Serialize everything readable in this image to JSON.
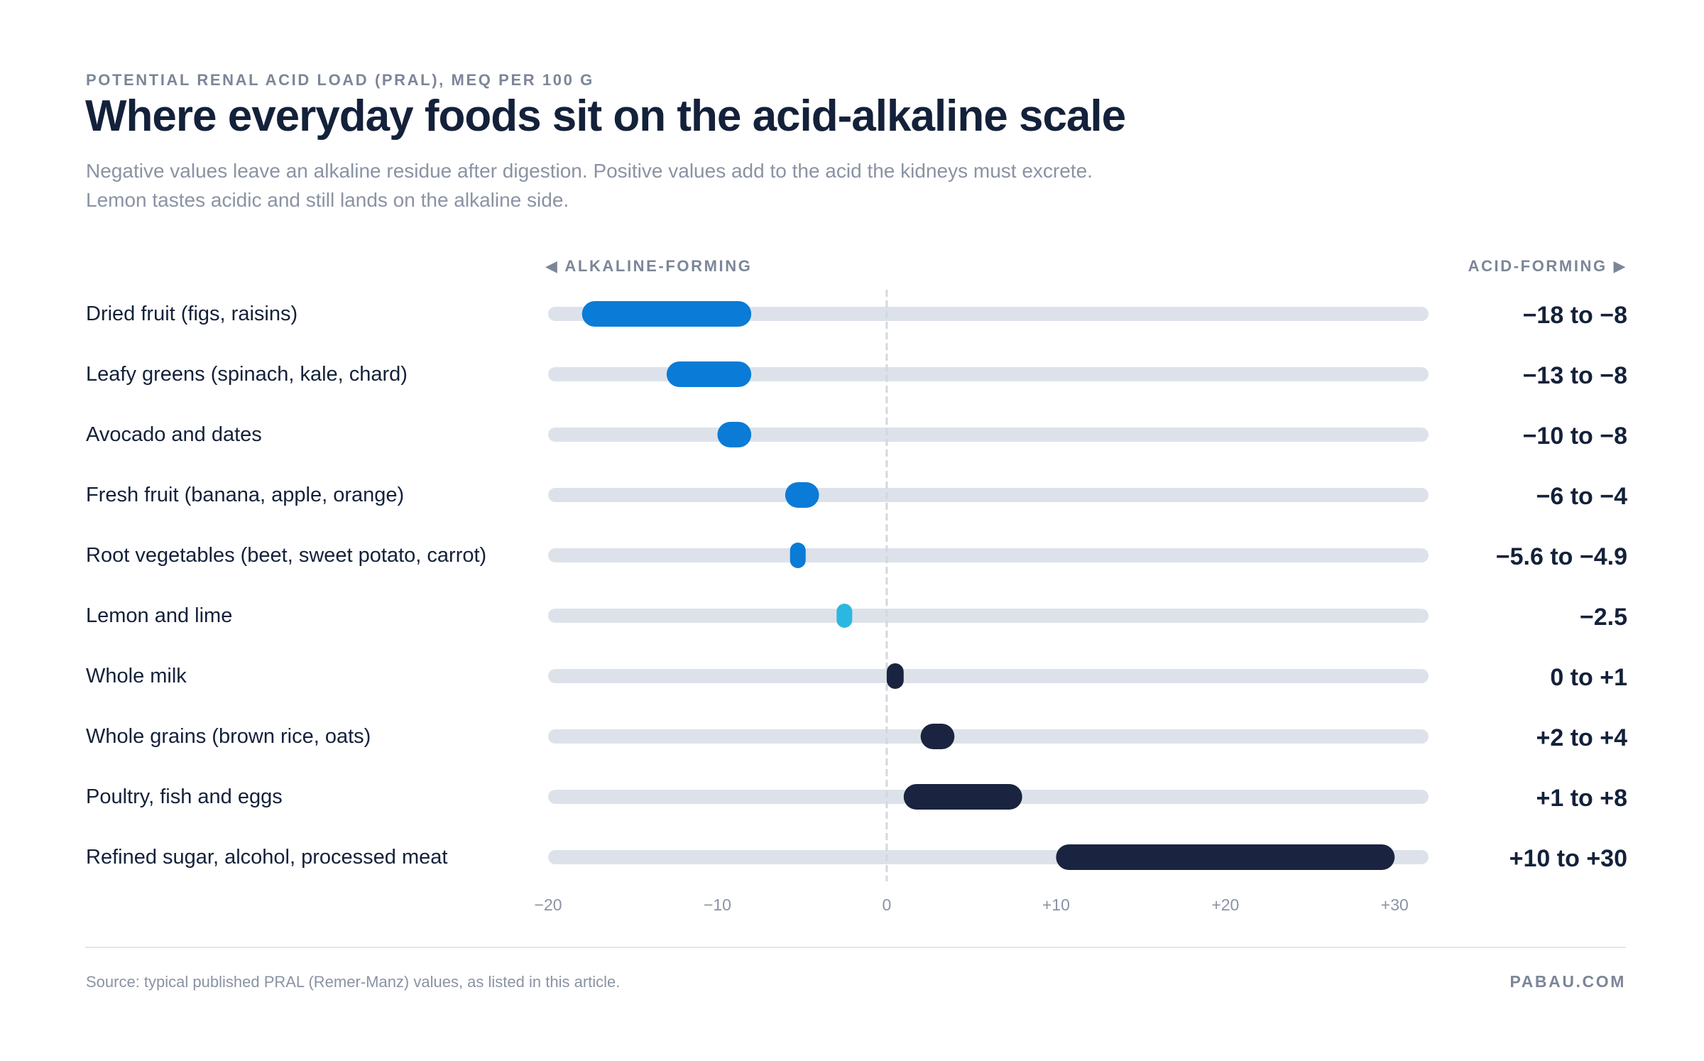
{
  "header": {
    "eyebrow": "POTENTIAL RENAL ACID LOAD (PRAL), MEQ PER 100 G",
    "title": "Where everyday foods sit on the acid-alkaline scale",
    "subtitle": "Negative values leave an alkaline residue after digestion. Positive values add to the acid the kidneys must excrete. Lemon tastes acidic and still lands on the alkaline side."
  },
  "direction": {
    "left": "◀ ALKALINE-FORMING",
    "right": "ACID-FORMING ▶"
  },
  "footer": {
    "source": "Source: typical published PRAL (Remer-Manz) values, as listed in this article.",
    "brand": "PABAU.COM"
  },
  "colors": {
    "alkaline": "#0a7bd6",
    "lemon": "#2bb8e0",
    "acid": "#1a2440",
    "track": "#dde2ea",
    "zero_line": "#d3d8e0"
  },
  "chart_data": {
    "type": "range-bar",
    "xlim": [
      -20,
      32
    ],
    "xticks": [
      -20,
      -10,
      0,
      10,
      20,
      30
    ],
    "xtick_labels": [
      "−20",
      "−10",
      "0",
      "+10",
      "+20",
      "+30"
    ],
    "zero_line": 0,
    "rows": [
      {
        "label": "Dried fruit (figs, raisins)",
        "min": -18,
        "max": -8,
        "value_label": "−18 to −8",
        "group": "alkaline"
      },
      {
        "label": "Leafy greens (spinach, kale, chard)",
        "min": -13,
        "max": -8,
        "value_label": "−13 to −8",
        "group": "alkaline"
      },
      {
        "label": "Avocado and dates",
        "min": -10,
        "max": -8,
        "value_label": "−10 to −8",
        "group": "alkaline"
      },
      {
        "label": "Fresh fruit (banana, apple, orange)",
        "min": -6,
        "max": -4,
        "value_label": "−6 to −4",
        "group": "alkaline"
      },
      {
        "label": "Root vegetables (beet, sweet potato, carrot)",
        "min": -5.6,
        "max": -4.9,
        "value_label": "−5.6 to −4.9",
        "group": "alkaline"
      },
      {
        "label": "Lemon and lime",
        "min": -2.5,
        "max": -2.5,
        "value_label": "−2.5",
        "group": "lemon"
      },
      {
        "label": "Whole milk",
        "min": 0,
        "max": 1,
        "value_label": "0 to +1",
        "group": "acid"
      },
      {
        "label": "Whole grains (brown rice, oats)",
        "min": 2,
        "max": 4,
        "value_label": "+2 to +4",
        "group": "acid"
      },
      {
        "label": "Poultry, fish and eggs",
        "min": 1,
        "max": 8,
        "value_label": "+1 to +8",
        "group": "acid"
      },
      {
        "label": "Refined sugar, alcohol, processed meat",
        "min": 10,
        "max": 30,
        "value_label": "+10 to +30",
        "group": "acid"
      }
    ]
  }
}
